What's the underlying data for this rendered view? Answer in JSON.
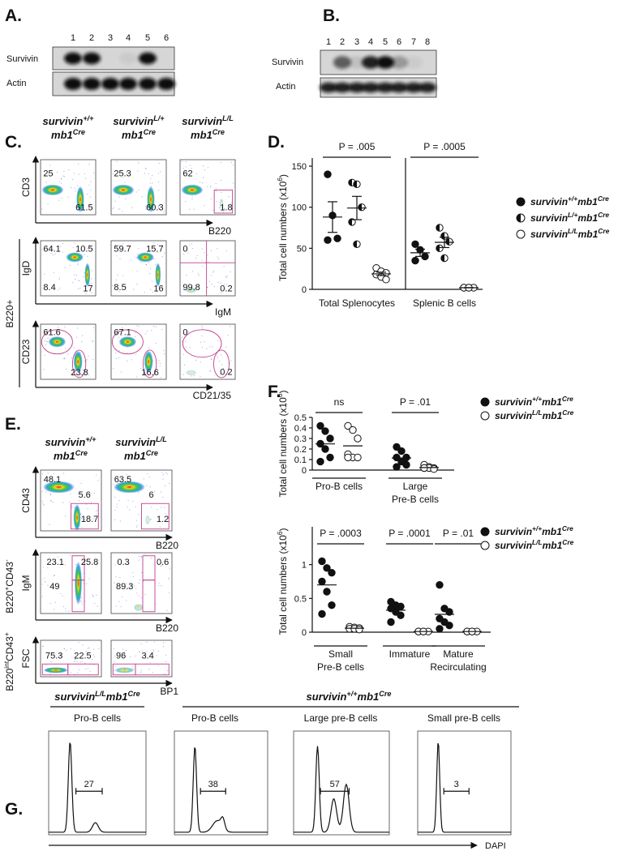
{
  "A": {
    "label": "A.",
    "lanes": [
      "1",
      "2",
      "3",
      "4",
      "5",
      "6"
    ],
    "rows": [
      "Survivin",
      "Actin"
    ]
  },
  "B": {
    "label": "B.",
    "lanes": [
      "1",
      "2",
      "3",
      "4",
      "5",
      "6",
      "7",
      "8"
    ],
    "rows": [
      "Survivin",
      "Actin"
    ]
  },
  "C": {
    "label": "C.",
    "columns": [
      {
        "gene": "survivin",
        "sup": "+/+",
        "driver": "mb1",
        "driver_sup": "Cre"
      },
      {
        "gene": "survivin",
        "sup": "L/+",
        "driver": "mb1",
        "driver_sup": "Cre"
      },
      {
        "gene": "survivin",
        "sup": "L/L",
        "driver": "mb1",
        "driver_sup": "Cre"
      }
    ],
    "side_label": "B220+",
    "rows": [
      {
        "y_axis": "CD3",
        "x_axis": "B220",
        "gates": [
          [
            25,
            61.5
          ],
          [
            25.3,
            60.3
          ],
          [
            62,
            1.8
          ]
        ]
      },
      {
        "y_axis": "IgD",
        "x_axis": "IgM",
        "gates": [
          [
            64.1,
            10.5,
            8.4,
            17
          ],
          [
            59.7,
            15.7,
            8.5,
            16
          ],
          [
            0,
            99.8,
            0.2
          ]
        ]
      },
      {
        "y_axis": "CD23",
        "x_axis": "CD21/35",
        "gates": [
          [
            61.6,
            23.8
          ],
          [
            67.1,
            16.6
          ],
          [
            0,
            0.2
          ]
        ]
      }
    ]
  },
  "D": {
    "label": "D.",
    "type": "dot",
    "summary": "mean_sem",
    "y_label": {
      "pre": "Total cell numbers (x10",
      "sup": "6",
      "post": ")"
    },
    "categories": [
      [
        "Total Splenocytes"
      ],
      [
        "Splenic B cells"
      ]
    ],
    "p_values": [
      "P = .005",
      "P = .0005"
    ],
    "ylim": [
      0,
      150
    ],
    "yticks": [
      0,
      50,
      100,
      150
    ],
    "series": [
      {
        "name": {
          "gene": "survivin",
          "sup": "+/+",
          "driver": "mb1",
          "driver_sup": "Cre"
        },
        "marker": "filled",
        "values": [
          [
            140,
            90,
            62,
            60
          ],
          [
            55,
            48,
            40,
            35
          ]
        ]
      },
      {
        "name": {
          "gene": "survivin",
          "sup": "L/+",
          "driver": "mb1",
          "driver_sup": "Cre"
        },
        "marker": "half",
        "values": [
          [
            130,
            128,
            100,
            82,
            55
          ],
          [
            75,
            65,
            58,
            50,
            38
          ]
        ]
      },
      {
        "name": {
          "gene": "survivin",
          "sup": "L/L",
          "driver": "mb1",
          "driver_sup": "Cre"
        },
        "marker": "open",
        "values": [
          [
            26,
            22,
            20,
            18,
            15,
            12
          ],
          [
            2,
            2,
            2,
            2,
            2
          ]
        ]
      }
    ]
  },
  "E": {
    "label": "E.",
    "columns": [
      {
        "gene": "survivin",
        "sup": "+/+",
        "driver": "mb1",
        "driver_sup": "Cre"
      },
      {
        "gene": "survivin",
        "sup": "L/L",
        "driver": "mb1",
        "driver_sup": "Cre"
      }
    ],
    "rows": [
      {
        "y_axis": "CD43",
        "x_axis": "B220",
        "gates": [
          [
            48.1,
            5.6,
            18.7
          ],
          [
            63.5,
            6,
            1.2
          ]
        ]
      },
      {
        "side_label": {
          "base": "B220",
          "sup": "+",
          "mid": "CD43",
          "sup2": "-"
        },
        "y_axis": "IgM",
        "x_axis": "B220",
        "gates": [
          [
            23.1,
            25.8,
            49
          ],
          [
            0.3,
            0.6,
            89.3
          ]
        ]
      },
      {
        "side_label": {
          "base": "B220",
          "sup": "int",
          "mid": "CD43",
          "sup2": "+"
        },
        "y_axis": "FSC",
        "x_axis": "BP1",
        "gates": [
          [
            75.3,
            22.5
          ],
          [
            96,
            3.4
          ]
        ]
      }
    ]
  },
  "F": {
    "label": "F.",
    "charts": [
      {
        "type": "dot",
        "summary": "mean",
        "y_label": {
          "pre": "Total cell numbers (x10",
          "sup": "6",
          "post": ")"
        },
        "categories": [
          [
            "Pro-B cells"
          ],
          [
            "Large",
            "Pre-B cells"
          ]
        ],
        "p_values": [
          "ns",
          "P = .01"
        ],
        "ylim": [
          0,
          0.5
        ],
        "yticks": [
          0,
          0.1,
          0.2,
          0.3,
          0.4,
          0.5
        ],
        "series": [
          {
            "name": {
              "gene": "survivin",
              "sup": "+/+",
              "driver": "mb1",
              "driver_sup": "Cre"
            },
            "marker": "filled",
            "values": [
              [
                0.42,
                0.37,
                0.3,
                0.25,
                0.2,
                0.12,
                0.08
              ],
              [
                0.22,
                0.18,
                0.12,
                0.12,
                0.08,
                0.05,
                0.03
              ]
            ]
          },
          {
            "name": {
              "gene": "survivin",
              "sup": "L/L",
              "driver": "mb1",
              "driver_sup": "Cre"
            },
            "marker": "open",
            "values": [
              [
                0.42,
                0.38,
                0.3,
                0.15,
                0.12,
                0.12,
                0.12
              ],
              [
                0.05,
                0.03,
                0.02,
                0.02,
                0.02,
                0.01,
                0.02
              ]
            ]
          }
        ]
      },
      {
        "type": "dot",
        "summary": "mean",
        "y_label": {
          "pre": "Total cell numbers (x10",
          "sup": "6",
          "post": ")"
        },
        "categories": [
          [
            "Small",
            "Pre-B cells"
          ],
          [
            "Immature"
          ],
          [
            "Mature",
            "Recirculating"
          ]
        ],
        "p_values": [
          "P = .0003",
          "P = .0001",
          "P = .01"
        ],
        "ylim": [
          0,
          1.5
        ],
        "yticks": [
          0,
          0.5,
          1
        ],
        "series": [
          {
            "name": {
              "gene": "survivin",
              "sup": "+/+",
              "driver": "mb1",
              "driver_sup": "Cre"
            },
            "marker": "filled",
            "values": [
              [
                1.05,
                0.95,
                0.88,
                0.75,
                0.6,
                0.4,
                0.27
              ],
              [
                0.45,
                0.4,
                0.38,
                0.35,
                0.3,
                0.25,
                0.15
              ],
              [
                0.7,
                0.35,
                0.3,
                0.2,
                0.15,
                0.1,
                0.05
              ]
            ]
          },
          {
            "name": {
              "gene": "survivin",
              "sup": "L/L",
              "driver": "mb1",
              "driver_sup": "Cre"
            },
            "marker": "open",
            "values": [
              [
                0.08,
                0.07,
                0.06,
                0.05,
                0.05,
                0.04
              ],
              [
                0.01,
                0.01,
                0.01,
                0.01,
                0.01
              ],
              [
                0.01,
                0.01,
                0.01,
                0.01,
                0.01
              ]
            ]
          }
        ]
      }
    ]
  },
  "G": {
    "label": "G.",
    "groups": [
      {
        "genotype": {
          "gene": "survivin",
          "sup": "L/L",
          "driver": "mb1",
          "driver_sup": "Cre"
        },
        "populations": [
          "Pro-B cells"
        ]
      },
      {
        "genotype": {
          "gene": "survivin",
          "sup": "+/+",
          "driver": "mb1",
          "driver_sup": "Cre"
        },
        "populations": [
          "Pro-B cells",
          "Large pre-B cells",
          "Small pre-B cells"
        ]
      }
    ],
    "gates": [
      27,
      38,
      57,
      3
    ],
    "x_axis": "DAPI"
  }
}
